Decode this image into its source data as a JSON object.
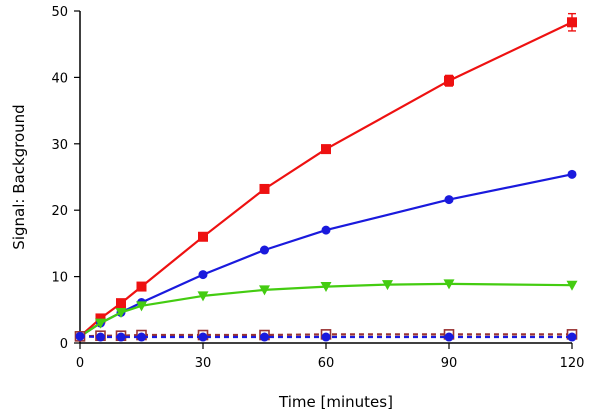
{
  "chart_data": {
    "type": "line",
    "title": "",
    "xlabel": "Time [minutes]",
    "ylabel": "Signal: Background",
    "xlim": [
      0,
      120
    ],
    "ylim": [
      0,
      50
    ],
    "x_ticks": [
      0,
      30,
      60,
      90,
      120
    ],
    "y_ticks": [
      0,
      10,
      20,
      30,
      40,
      50
    ],
    "grid": false,
    "legend": "none",
    "series": [
      {
        "color": "#ee1111",
        "marker": "square",
        "line": "solid",
        "x": [
          0,
          5,
          10,
          15,
          30,
          45,
          60,
          90,
          120
        ],
        "y": [
          1,
          3.7,
          6,
          8.5,
          16,
          23.2,
          29.2,
          39.5,
          48.3
        ],
        "error": [
          0,
          0,
          0,
          0,
          0,
          0,
          0,
          0.8,
          1.3
        ]
      },
      {
        "color": "#1a1add",
        "marker": "circle",
        "line": "solid",
        "x": [
          0,
          5,
          10,
          15,
          30,
          45,
          60,
          90,
          120
        ],
        "y": [
          1,
          3,
          4.6,
          6.1,
          10.3,
          14,
          17,
          21.6,
          25.4
        ]
      },
      {
        "color": "#44cc11",
        "marker": "triangle-down",
        "line": "solid",
        "x": [
          0,
          5,
          10,
          15,
          30,
          45,
          60,
          75,
          90,
          120
        ],
        "y": [
          1,
          3,
          4.6,
          5.6,
          7.1,
          8,
          8.5,
          8.8,
          8.9,
          8.7
        ]
      },
      {
        "color": "#993333",
        "marker": "square-open",
        "line": "dashed",
        "x": [
          0,
          5,
          10,
          15,
          30,
          45,
          60,
          90,
          120
        ],
        "y": [
          1,
          1.1,
          1.1,
          1.2,
          1.2,
          1.2,
          1.3,
          1.3,
          1.3
        ]
      },
      {
        "color": "#1a1add",
        "marker": "circle",
        "line": "dashed",
        "x": [
          0,
          5,
          10,
          15,
          30,
          45,
          60,
          90,
          120
        ],
        "y": [
          1,
          0.9,
          0.9,
          0.9,
          0.9,
          0.9,
          0.9,
          0.9,
          0.9
        ]
      }
    ]
  }
}
